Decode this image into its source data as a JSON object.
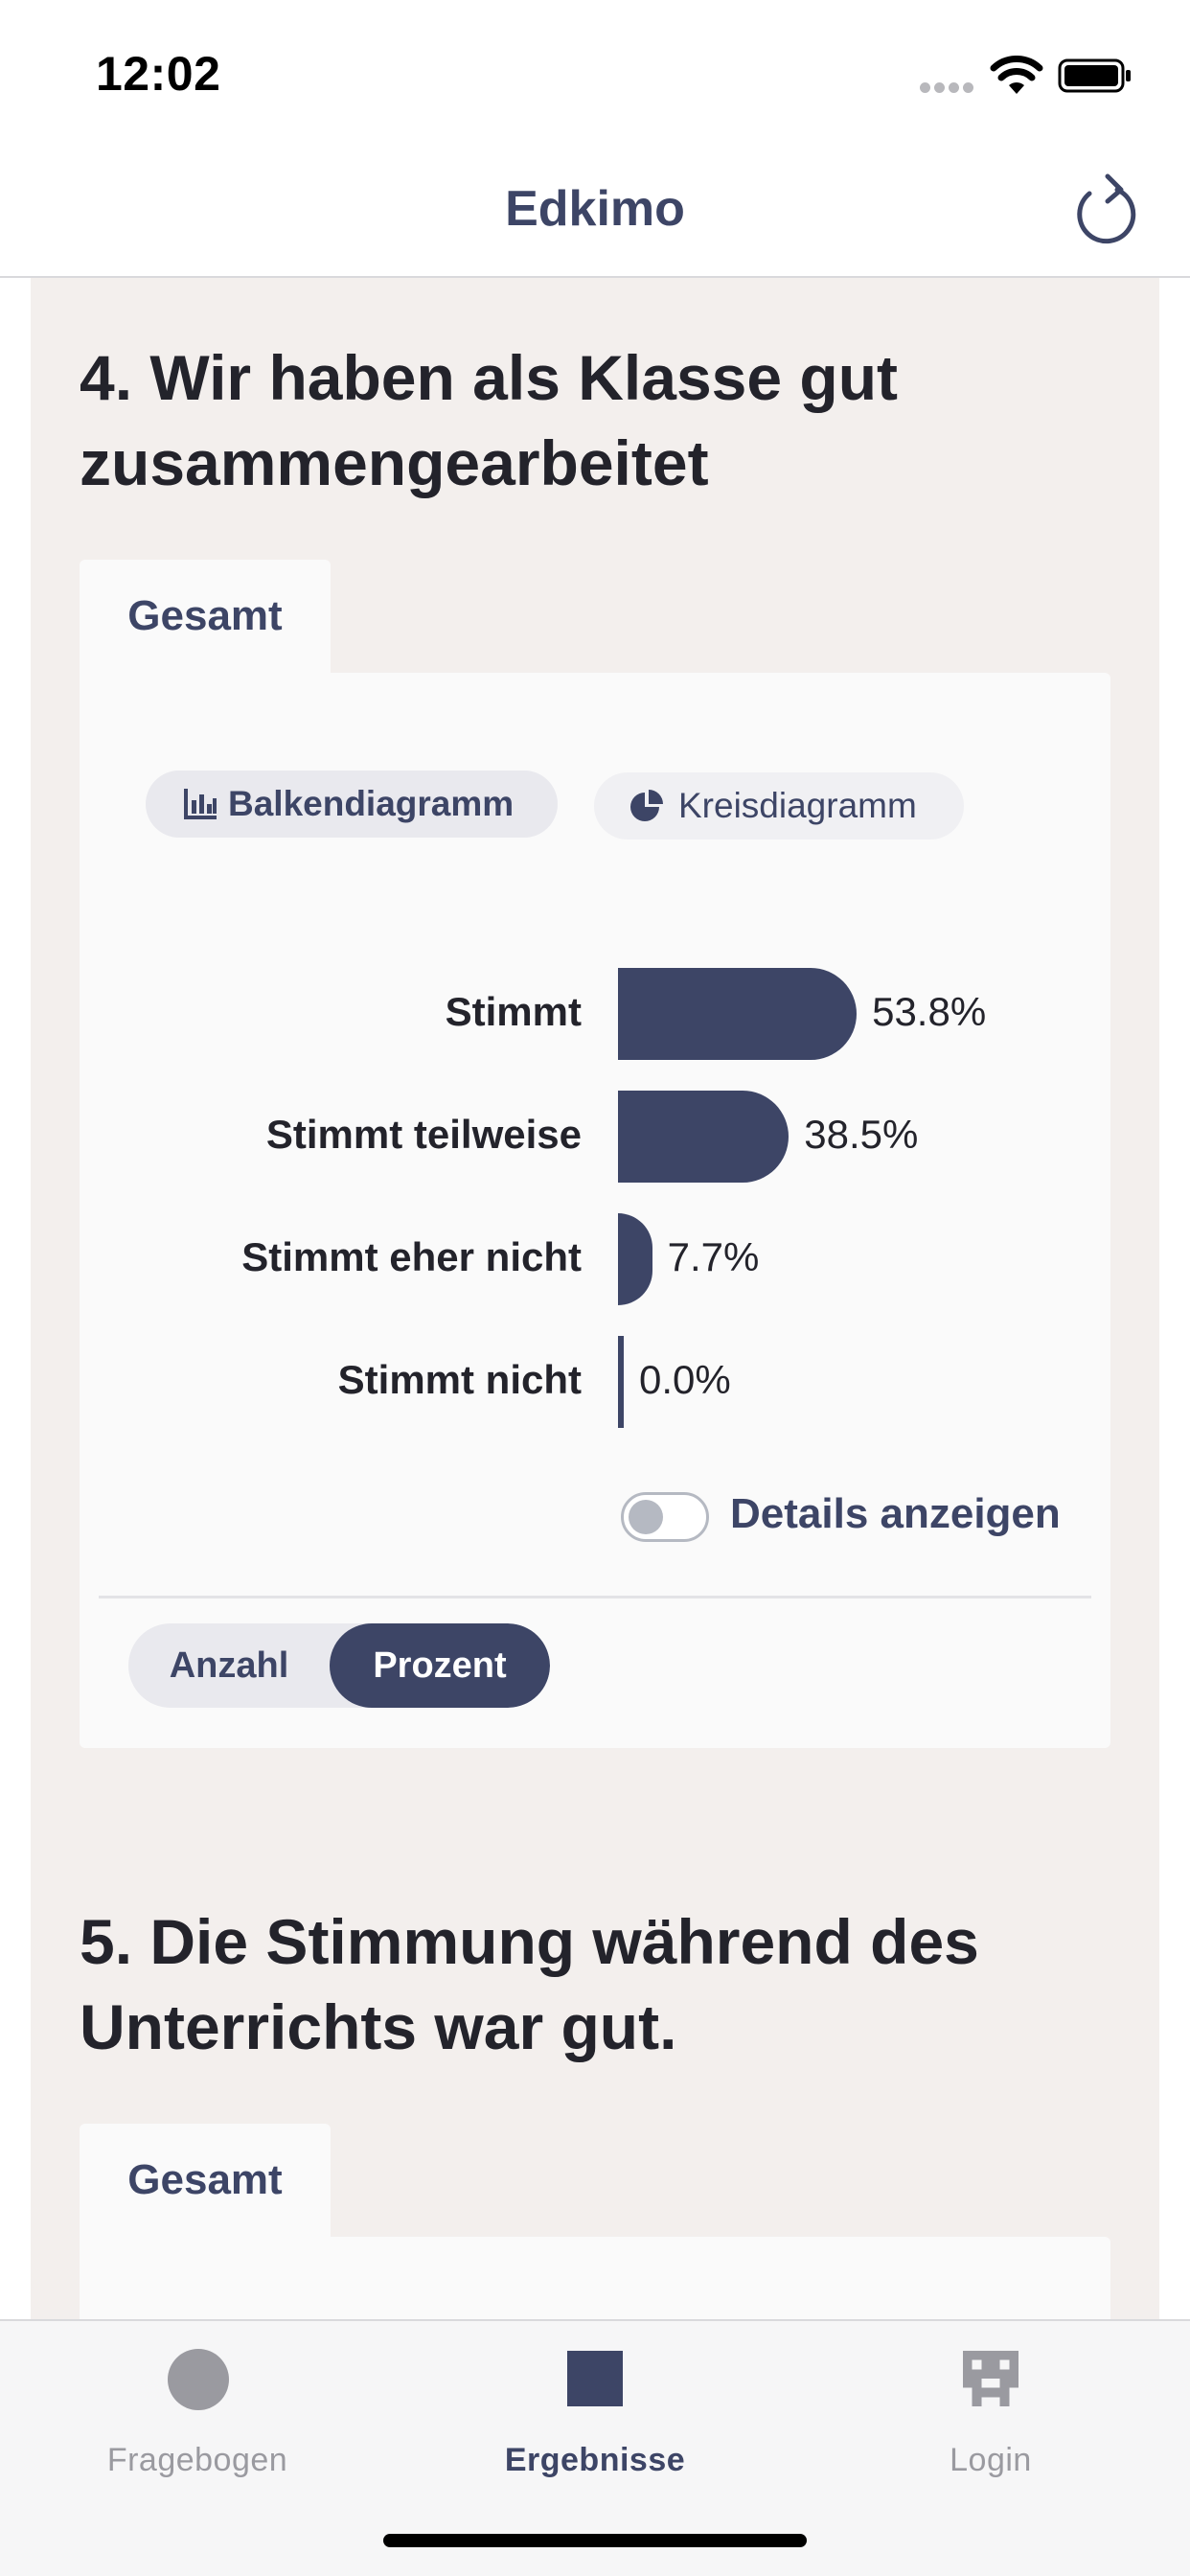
{
  "status_bar": {
    "time": "12:02"
  },
  "nav": {
    "title": "Edkimo",
    "refresh_icon": "refresh-icon"
  },
  "colors": {
    "accent": "#3d4566",
    "background": "#f3efed",
    "panel": "#fafafa",
    "muted": "#9a9aa0"
  },
  "questions": [
    {
      "title": "4. Wir haben als Klasse gut zusammengearbeitet",
      "tab_label": "Gesamt",
      "chart_toggle": {
        "bar_label": "Balkendiagramm",
        "pie_label": "Kreisdiagramm",
        "bar_icon": "bar-chart-icon",
        "pie_icon": "pie-chart-icon",
        "selected": "Balkendiagramm"
      },
      "details_label": "Details anzeigen",
      "details_enabled": false,
      "mode": {
        "count_label": "Anzahl",
        "percent_label": "Prozent",
        "selected": "Prozent"
      }
    },
    {
      "title": "5. Die Stimmung während des Unterrichts war gut.",
      "tab_label": "Gesamt"
    }
  ],
  "chart_data": {
    "type": "bar",
    "orientation": "horizontal",
    "categories": [
      "Stimmt",
      "Stimmt teilweise",
      "Stimmt eher nicht",
      "Stimmt nicht"
    ],
    "values": [
      53.8,
      38.5,
      7.7,
      0.0
    ],
    "value_labels": [
      "53.8%",
      "38.5%",
      "7.7%",
      "0.0%"
    ],
    "unit": "%",
    "xlim": [
      0,
      100
    ],
    "color": "#3d4566"
  },
  "tab_bar": {
    "items": [
      {
        "label": "Fragebogen",
        "icon": "circle-icon",
        "active": false
      },
      {
        "label": "Ergebnisse",
        "icon": "square-icon",
        "active": true
      },
      {
        "label": "Login",
        "icon": "pixel-mask-icon",
        "active": false
      }
    ]
  }
}
